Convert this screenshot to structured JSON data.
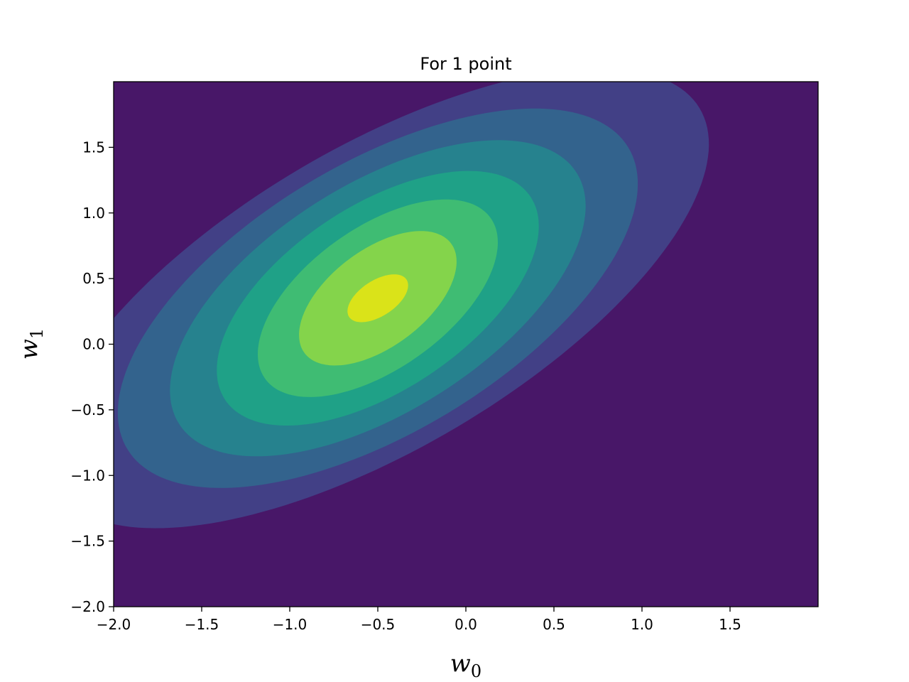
{
  "chart_data": {
    "type": "contour",
    "title": "For 1 point",
    "xlabel": {
      "base": "w",
      "sub": "0"
    },
    "ylabel": {
      "base": "w",
      "sub": "1"
    },
    "xlim": [
      -2.0,
      2.0
    ],
    "ylim": [
      -2.0,
      2.0
    ],
    "xticks": [
      -2.0,
      -1.5,
      -1.0,
      -0.5,
      0.0,
      0.5,
      1.0,
      1.5
    ],
    "yticks": [
      -2.0,
      -1.5,
      -1.0,
      -0.5,
      0.0,
      0.5,
      1.0,
      1.5
    ],
    "xtick_labels": [
      "−2.0",
      "−1.5",
      "−1.0",
      "−0.5",
      "0.0",
      "0.5",
      "1.0",
      "1.5"
    ],
    "ytick_labels": [
      "−2.0",
      "−1.5",
      "−1.0",
      "−0.5",
      "0.0",
      "0.5",
      "1.0",
      "1.5"
    ],
    "grid": false,
    "colormap": "viridis",
    "background_color": "#481768",
    "center": [
      -0.5,
      0.35
    ],
    "levels": [
      {
        "color": "#424086",
        "semi_major": 2.35,
        "semi_minor": 1.04,
        "angle_deg": 42
      },
      {
        "color": "#33638d",
        "semi_major": 1.85,
        "semi_minor": 0.92,
        "angle_deg": 44
      },
      {
        "color": "#26828e",
        "semi_major": 1.5,
        "semi_minor": 0.77,
        "angle_deg": 46
      },
      {
        "color": "#1fa187",
        "semi_major": 1.18,
        "semi_minor": 0.62,
        "angle_deg": 48
      },
      {
        "color": "#3fbc73",
        "semi_major": 0.9,
        "semi_minor": 0.47,
        "angle_deg": 50
      },
      {
        "color": "#84d44b",
        "semi_major": 0.6,
        "semi_minor": 0.32,
        "angle_deg": 52
      },
      {
        "color": "#dae319",
        "semi_major": 0.22,
        "semi_minor": 0.12,
        "angle_deg": 48
      }
    ]
  }
}
